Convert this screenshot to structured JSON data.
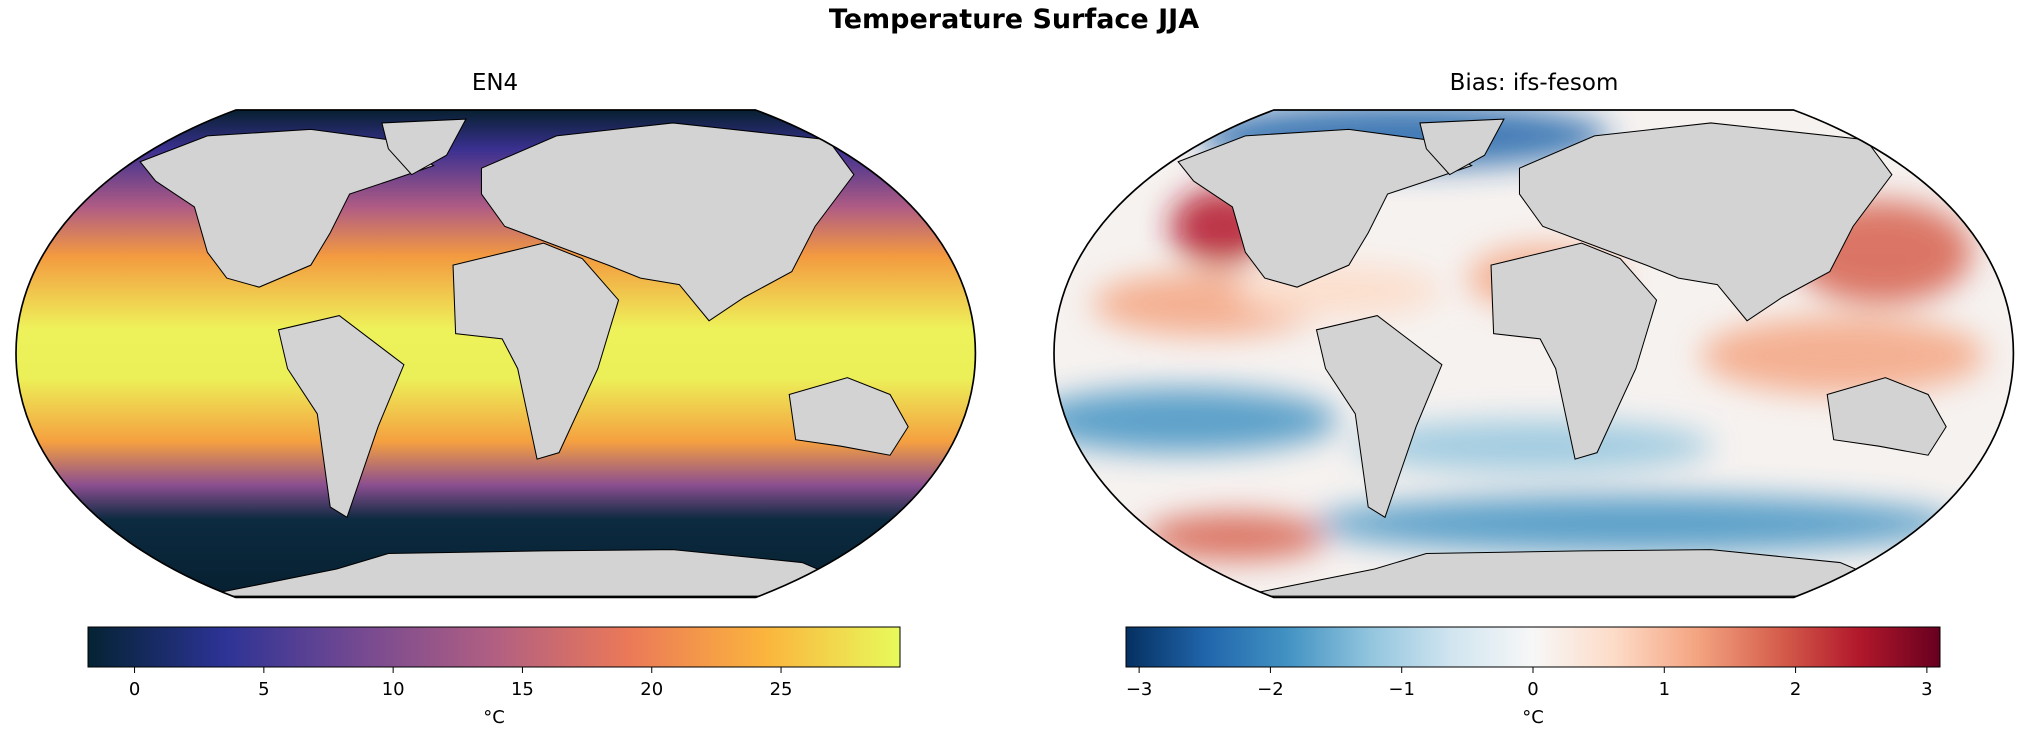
{
  "title": "Temperature Surface JJA",
  "chart_data": [
    {
      "type": "map",
      "title": "EN4",
      "colorbar": {
        "label": "°C",
        "lim": [
          -1.8,
          29.6
        ],
        "ticks": [
          0,
          5,
          10,
          15,
          20,
          25
        ],
        "colors": [
          "#042333",
          "#2c3395",
          "#744992",
          "#b15f82",
          "#eb7958",
          "#fbb43d",
          "#e8fa5b"
        ]
      }
    },
    {
      "type": "map",
      "title": "Bias: ifs-fesom",
      "colorbar": {
        "label": "°C",
        "lim": [
          -3.1,
          3.1
        ],
        "ticks": [
          {
            "value": -3,
            "label": "−3"
          },
          {
            "value": -2,
            "label": "−2"
          },
          {
            "value": -1,
            "label": "−1"
          },
          0,
          1,
          2,
          3
        ],
        "colors": [
          "#053061",
          "#2166ac",
          "#4393c3",
          "#92c5de",
          "#d1e5f0",
          "#f7f7f7",
          "#fddbc7",
          "#f4a582",
          "#d6604d",
          "#b2182b",
          "#67001f"
        ]
      }
    }
  ]
}
